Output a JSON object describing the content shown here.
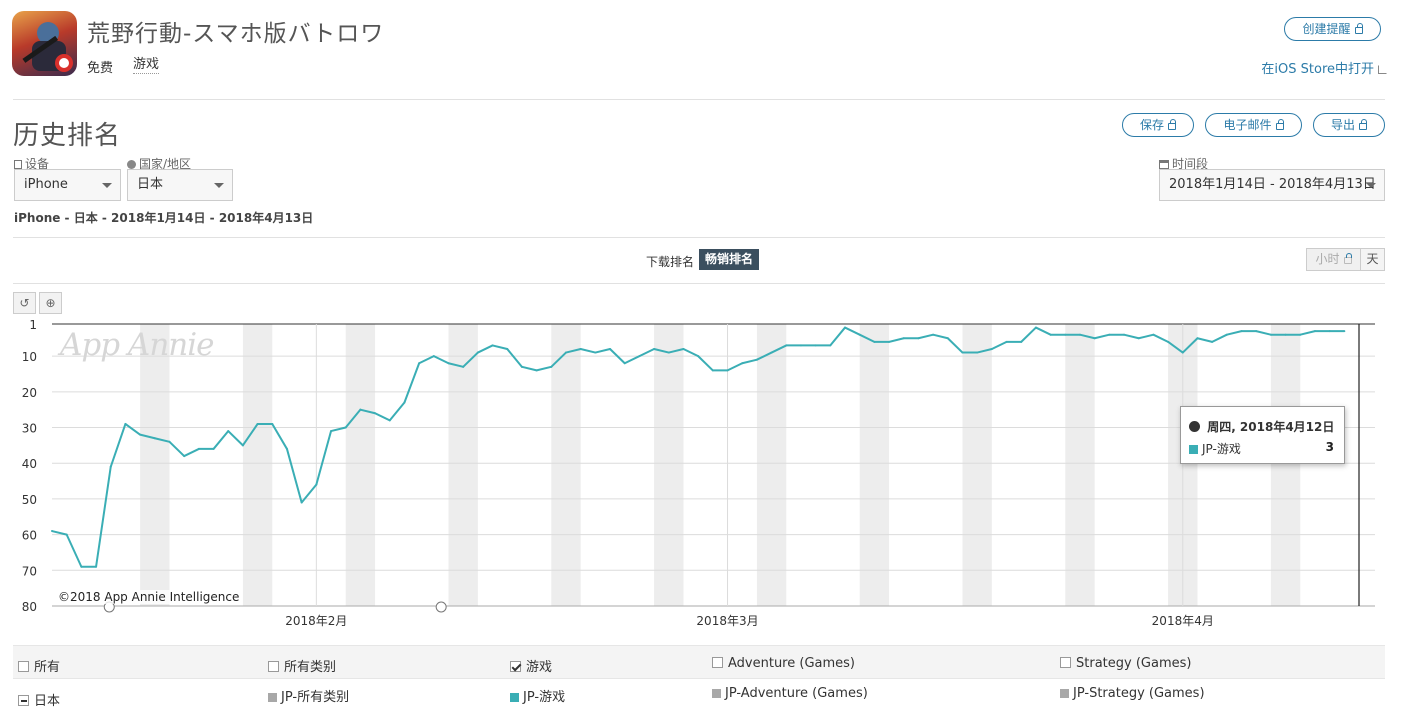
{
  "app": {
    "title": "荒野行動-スマホ版バトロワ",
    "price": "免费",
    "category": "游戏",
    "create_alert": "创建提醒",
    "open_ios": "在iOS Store中打开"
  },
  "section": {
    "title": "历史排名",
    "save": "保存",
    "email": "电子邮件",
    "export": "导出"
  },
  "filters": {
    "device_label": "设备",
    "device_value": "iPhone",
    "country_label": "国家/地区",
    "country_value": "日本",
    "period_label": "时间段",
    "period_value": "2018年1月14日 - 2018年4月13日"
  },
  "subtitle": "iPhone - 日本 - 2018年1月14日 - 2018年4月13日",
  "tabs": {
    "download": "下载排名",
    "grossing": "畅销排名"
  },
  "granularity": {
    "hour": "小时",
    "day": "天"
  },
  "tools": {
    "reset": "↺",
    "zoom": "⊕"
  },
  "colors": {
    "line": "#3aaeb5",
    "weekend": "#ededed",
    "accent": "#2c7ba8"
  },
  "chart_data": {
    "type": "line",
    "watermark": "App Annie",
    "copyright": "©2018 App Annie Intelligence",
    "y_inverted": true,
    "ylim": [
      1,
      80
    ],
    "y_ticks": [
      1,
      10,
      20,
      30,
      40,
      50,
      60,
      70,
      80
    ],
    "x_start": "2018-01-14",
    "x_end": "2018-04-13",
    "x_ticks": [
      {
        "date": "2018-02-01",
        "label": "2018年2月"
      },
      {
        "date": "2018-03-01",
        "label": "2018年3月"
      },
      {
        "date": "2018-04-01",
        "label": "2018年4月"
      }
    ],
    "grid": true,
    "weekend_shading": true,
    "series": [
      {
        "name": "JP-游戏",
        "values": [
          59,
          60,
          69,
          69,
          41,
          29,
          32,
          33,
          34,
          38,
          36,
          36,
          31,
          35,
          29,
          29,
          36,
          51,
          46,
          31,
          30,
          25,
          26,
          28,
          23,
          12,
          10,
          12,
          13,
          9,
          7,
          8,
          13,
          14,
          13,
          9,
          8,
          9,
          8,
          12,
          10,
          8,
          9,
          8,
          10,
          14,
          14,
          12,
          11,
          9,
          7,
          7,
          7,
          7,
          2,
          4,
          6,
          6,
          5,
          5,
          4,
          5,
          9,
          9,
          8,
          6,
          6,
          2,
          4,
          4,
          4,
          5,
          4,
          4,
          5,
          4,
          6,
          9,
          5,
          6,
          4,
          3,
          3,
          4,
          4,
          4,
          3,
          3,
          3
        ]
      }
    ],
    "tooltip": {
      "date_label": "周四, 2018年4月12日",
      "series": "JP-游戏",
      "value": "3"
    }
  },
  "legend": {
    "head": [
      "所有",
      "所有类别",
      "游戏",
      "Adventure (Games)",
      "Strategy (Games)"
    ],
    "row_label": "日本",
    "row": [
      "JP-所有类别",
      "JP-游戏",
      "JP-Adventure (Games)",
      "JP-Strategy (Games)"
    ],
    "row_colors": [
      "#a8a8a8",
      "#3aaeb5",
      "#a8a8a8",
      "#a8a8a8"
    ]
  }
}
